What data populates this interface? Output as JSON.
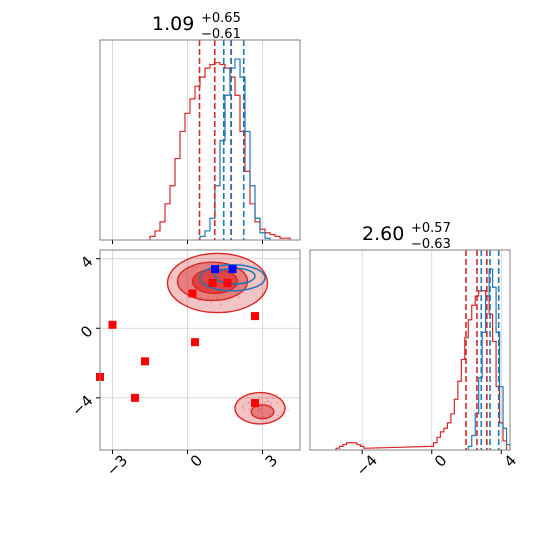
{
  "chart_data": [
    {
      "panel": "marginal-param-1",
      "type": "histogram",
      "title": {
        "value": "1.09",
        "upper": "+0.65",
        "lower": "−0.61"
      },
      "xlim": [
        -3.5,
        4.5
      ],
      "grid": true,
      "series": [
        {
          "name": "",
          "color": "#d62728",
          "x": [
            -1.4,
            -1.2,
            -1.0,
            -0.8,
            -0.6,
            -0.4,
            -0.2,
            0.0,
            0.2,
            0.4,
            0.6,
            0.8,
            1.0,
            1.2,
            1.4,
            1.6,
            1.8,
            2.0,
            2.2,
            2.4,
            2.6,
            2.8,
            3.0,
            3.2,
            3.4,
            3.6,
            3.8,
            4.0
          ],
          "y": [
            0.02,
            0.05,
            0.1,
            0.2,
            0.3,
            0.45,
            0.6,
            0.7,
            0.78,
            0.85,
            0.9,
            0.95,
            0.97,
            0.98,
            0.97,
            0.95,
            0.9,
            0.8,
            0.6,
            0.38,
            0.2,
            0.1,
            0.06,
            0.04,
            0.03,
            0.02,
            0.01,
            0.01
          ]
        },
        {
          "name": "",
          "color": "#1f77b4",
          "x": [
            0.6,
            0.8,
            1.0,
            1.2,
            1.4,
            1.6,
            1.8,
            2.0,
            2.2,
            2.4,
            2.6,
            2.8,
            3.0,
            3.2
          ],
          "y": [
            0.02,
            0.05,
            0.12,
            0.3,
            0.55,
            0.8,
            0.95,
            1.0,
            0.9,
            0.6,
            0.3,
            0.12,
            0.04,
            0.01
          ]
        }
      ],
      "quantile_lines": [
        {
          "color": "#d62728",
          "x": [
            0.48,
            1.09,
            1.74
          ]
        },
        {
          "color": "#1f77b4",
          "x": [
            1.45,
            1.75,
            2.25
          ]
        }
      ]
    },
    {
      "panel": "marginal-param-2",
      "type": "histogram",
      "title": {
        "value": "2.60",
        "upper": "+0.57",
        "lower": "−0.63"
      },
      "xlim": [
        -7,
        4.5
      ],
      "xticks": [
        "−4",
        "0",
        "4"
      ],
      "grid": true,
      "series": [
        {
          "name": "",
          "color": "#d62728",
          "x": [
            -5.4,
            -5.2,
            -5.0,
            -4.8,
            -4.6,
            -4.4,
            -4.2,
            -4.0,
            -3.8,
            0.0,
            0.2,
            0.4,
            0.6,
            0.8,
            1.0,
            1.2,
            1.4,
            1.6,
            1.8,
            2.0,
            2.2,
            2.4,
            2.6,
            2.8,
            3.0,
            3.2,
            3.4,
            3.6,
            3.8,
            4.0,
            4.2
          ],
          "y": [
            0.01,
            0.02,
            0.03,
            0.04,
            0.04,
            0.04,
            0.03,
            0.02,
            0.01,
            0.02,
            0.04,
            0.07,
            0.1,
            0.12,
            0.15,
            0.2,
            0.28,
            0.38,
            0.5,
            0.62,
            0.72,
            0.8,
            0.85,
            0.88,
            0.88,
            0.85,
            0.75,
            0.6,
            0.35,
            0.15,
            0.05
          ]
        },
        {
          "name": "",
          "color": "#1f77b4",
          "x": [
            2.2,
            2.4,
            2.6,
            2.8,
            3.0,
            3.2,
            3.4,
            3.6,
            3.8,
            4.0,
            4.2,
            4.4
          ],
          "y": [
            0.02,
            0.08,
            0.2,
            0.4,
            0.65,
            0.85,
            1.0,
            0.9,
            0.65,
            0.35,
            0.12,
            0.03
          ]
        }
      ],
      "quantile_lines": [
        {
          "color": "#d62728",
          "x": [
            1.97,
            2.6,
            3.17
          ]
        },
        {
          "color": "#1f77b4",
          "x": [
            2.85,
            3.35,
            3.85
          ]
        }
      ]
    },
    {
      "panel": "joint",
      "type": "contour-scatter",
      "xlim": [
        -3.5,
        4.5
      ],
      "ylim": [
        -7,
        4.5
      ],
      "xticks": [
        "−3",
        "0",
        "3"
      ],
      "yticks": [
        "−4",
        "0",
        "4"
      ],
      "grid": true,
      "contours_red": [
        {
          "cx": 1.2,
          "cy": 2.6,
          "rx": 2.0,
          "ry": 1.7,
          "level": "outer"
        },
        {
          "cx": 1.0,
          "cy": 2.7,
          "rx": 1.4,
          "ry": 1.1,
          "level": "middle"
        },
        {
          "cx": 1.1,
          "cy": 2.7,
          "rx": 0.9,
          "ry": 0.7,
          "level": "inner"
        },
        {
          "cx": 2.9,
          "cy": -4.6,
          "rx": 1.0,
          "ry": 0.9,
          "level": "outer"
        },
        {
          "cx": 3.0,
          "cy": -4.8,
          "rx": 0.45,
          "ry": 0.4,
          "level": "middle"
        }
      ],
      "contours_blue": [
        {
          "cx": 1.8,
          "cy": 2.9,
          "rx": 1.3,
          "ry": 0.75
        },
        {
          "cx": 1.9,
          "cy": 3.0,
          "rx": 0.8,
          "ry": 0.45
        }
      ],
      "markers_red": [
        [
          -3.5,
          -2.8
        ],
        [
          -3.0,
          0.2
        ],
        [
          -2.1,
          -4.0
        ],
        [
          -1.7,
          -1.9
        ],
        [
          0.2,
          2.0
        ],
        [
          0.3,
          -0.8
        ],
        [
          1.0,
          2.6
        ],
        [
          1.6,
          2.6
        ],
        [
          2.7,
          0.7
        ],
        [
          2.7,
          -4.3
        ]
      ],
      "markers_blue": [
        [
          1.1,
          3.4
        ],
        [
          1.8,
          3.4
        ]
      ]
    }
  ]
}
